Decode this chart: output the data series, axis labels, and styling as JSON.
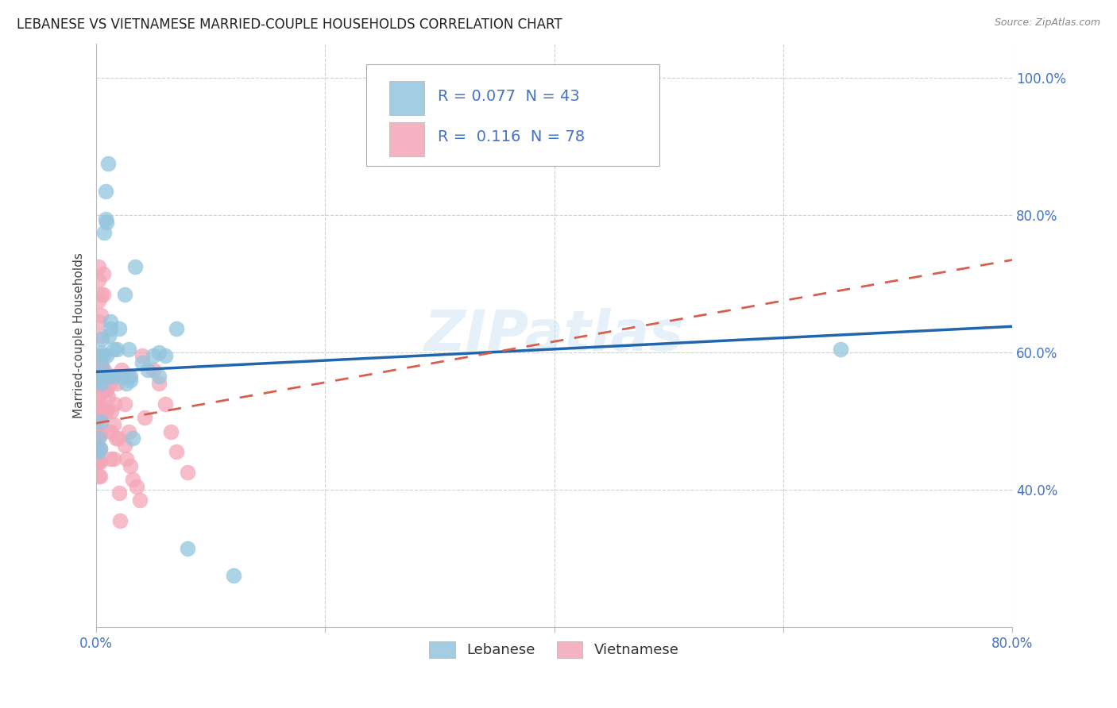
{
  "title": "LEBANESE VS VIETNAMESE MARRIED-COUPLE HOUSEHOLDS CORRELATION CHART",
  "source": "Source: ZipAtlas.com",
  "ylabel": "Married-couple Households",
  "xlim": [
    0.0,
    0.8
  ],
  "ylim": [
    0.2,
    1.05
  ],
  "xticks": [
    0.0,
    0.2,
    0.4,
    0.6,
    0.8
  ],
  "xticklabels": [
    "0.0%",
    "",
    "",
    "",
    "80.0%"
  ],
  "yticks": [
    0.4,
    0.6,
    0.8,
    1.0
  ],
  "yticklabels": [
    "40.0%",
    "60.0%",
    "80.0%",
    "100.0%"
  ],
  "watermark": "ZIPatlas",
  "legend_R": [
    "0.077",
    "0.116"
  ],
  "legend_N": [
    "43",
    "78"
  ],
  "blue_color": "#92c5de",
  "pink_color": "#f4a6b8",
  "blue_line_color": "#2166ac",
  "pink_line_color": "#d6604d",
  "blue_line": [
    [
      0.0,
      0.572
    ],
    [
      0.8,
      0.638
    ]
  ],
  "pink_line": [
    [
      0.0,
      0.497
    ],
    [
      0.8,
      0.735
    ]
  ],
  "blue_scatter": [
    [
      0.001,
      0.56
    ],
    [
      0.002,
      0.475
    ],
    [
      0.002,
      0.455
    ],
    [
      0.003,
      0.46
    ],
    [
      0.004,
      0.5
    ],
    [
      0.004,
      0.6
    ],
    [
      0.005,
      0.58
    ],
    [
      0.005,
      0.62
    ],
    [
      0.005,
      0.555
    ],
    [
      0.006,
      0.565
    ],
    [
      0.006,
      0.595
    ],
    [
      0.007,
      0.775
    ],
    [
      0.008,
      0.835
    ],
    [
      0.008,
      0.795
    ],
    [
      0.009,
      0.79
    ],
    [
      0.009,
      0.595
    ],
    [
      0.01,
      0.875
    ],
    [
      0.011,
      0.625
    ],
    [
      0.012,
      0.645
    ],
    [
      0.012,
      0.635
    ],
    [
      0.012,
      0.565
    ],
    [
      0.015,
      0.565
    ],
    [
      0.015,
      0.605
    ],
    [
      0.018,
      0.605
    ],
    [
      0.02,
      0.635
    ],
    [
      0.022,
      0.565
    ],
    [
      0.025,
      0.685
    ],
    [
      0.026,
      0.555
    ],
    [
      0.028,
      0.605
    ],
    [
      0.03,
      0.56
    ],
    [
      0.03,
      0.565
    ],
    [
      0.032,
      0.475
    ],
    [
      0.034,
      0.725
    ],
    [
      0.04,
      0.585
    ],
    [
      0.045,
      0.575
    ],
    [
      0.05,
      0.595
    ],
    [
      0.055,
      0.6
    ],
    [
      0.055,
      0.565
    ],
    [
      0.06,
      0.595
    ],
    [
      0.07,
      0.635
    ],
    [
      0.08,
      0.315
    ],
    [
      0.12,
      0.275
    ],
    [
      0.65,
      0.605
    ]
  ],
  "pink_scatter": [
    [
      0.001,
      0.575
    ],
    [
      0.001,
      0.555
    ],
    [
      0.001,
      0.525
    ],
    [
      0.001,
      0.505
    ],
    [
      0.001,
      0.48
    ],
    [
      0.001,
      0.46
    ],
    [
      0.001,
      0.44
    ],
    [
      0.002,
      0.725
    ],
    [
      0.002,
      0.705
    ],
    [
      0.002,
      0.675
    ],
    [
      0.002,
      0.645
    ],
    [
      0.002,
      0.595
    ],
    [
      0.002,
      0.565
    ],
    [
      0.002,
      0.535
    ],
    [
      0.002,
      0.505
    ],
    [
      0.002,
      0.48
    ],
    [
      0.002,
      0.46
    ],
    [
      0.002,
      0.44
    ],
    [
      0.002,
      0.42
    ],
    [
      0.003,
      0.575
    ],
    [
      0.003,
      0.555
    ],
    [
      0.003,
      0.525
    ],
    [
      0.003,
      0.505
    ],
    [
      0.003,
      0.48
    ],
    [
      0.003,
      0.46
    ],
    [
      0.003,
      0.44
    ],
    [
      0.003,
      0.42
    ],
    [
      0.004,
      0.685
    ],
    [
      0.004,
      0.655
    ],
    [
      0.004,
      0.625
    ],
    [
      0.004,
      0.595
    ],
    [
      0.004,
      0.565
    ],
    [
      0.005,
      0.575
    ],
    [
      0.005,
      0.545
    ],
    [
      0.005,
      0.515
    ],
    [
      0.005,
      0.485
    ],
    [
      0.006,
      0.715
    ],
    [
      0.006,
      0.685
    ],
    [
      0.006,
      0.565
    ],
    [
      0.007,
      0.575
    ],
    [
      0.008,
      0.545
    ],
    [
      0.008,
      0.515
    ],
    [
      0.009,
      0.545
    ],
    [
      0.009,
      0.515
    ],
    [
      0.01,
      0.565
    ],
    [
      0.01,
      0.535
    ],
    [
      0.012,
      0.555
    ],
    [
      0.012,
      0.485
    ],
    [
      0.012,
      0.445
    ],
    [
      0.013,
      0.565
    ],
    [
      0.013,
      0.515
    ],
    [
      0.015,
      0.565
    ],
    [
      0.015,
      0.495
    ],
    [
      0.015,
      0.445
    ],
    [
      0.016,
      0.525
    ],
    [
      0.017,
      0.475
    ],
    [
      0.018,
      0.555
    ],
    [
      0.019,
      0.475
    ],
    [
      0.02,
      0.395
    ],
    [
      0.021,
      0.355
    ],
    [
      0.022,
      0.575
    ],
    [
      0.025,
      0.525
    ],
    [
      0.025,
      0.465
    ],
    [
      0.026,
      0.445
    ],
    [
      0.028,
      0.565
    ],
    [
      0.028,
      0.485
    ],
    [
      0.03,
      0.435
    ],
    [
      0.032,
      0.415
    ],
    [
      0.035,
      0.405
    ],
    [
      0.038,
      0.385
    ],
    [
      0.04,
      0.595
    ],
    [
      0.042,
      0.505
    ],
    [
      0.05,
      0.575
    ],
    [
      0.055,
      0.555
    ],
    [
      0.06,
      0.525
    ],
    [
      0.065,
      0.485
    ],
    [
      0.07,
      0.455
    ],
    [
      0.08,
      0.425
    ]
  ],
  "title_fontsize": 12,
  "source_fontsize": 9,
  "axis_tick_color": "#4472c4",
  "grid_color": "#cccccc",
  "background_color": "#ffffff"
}
